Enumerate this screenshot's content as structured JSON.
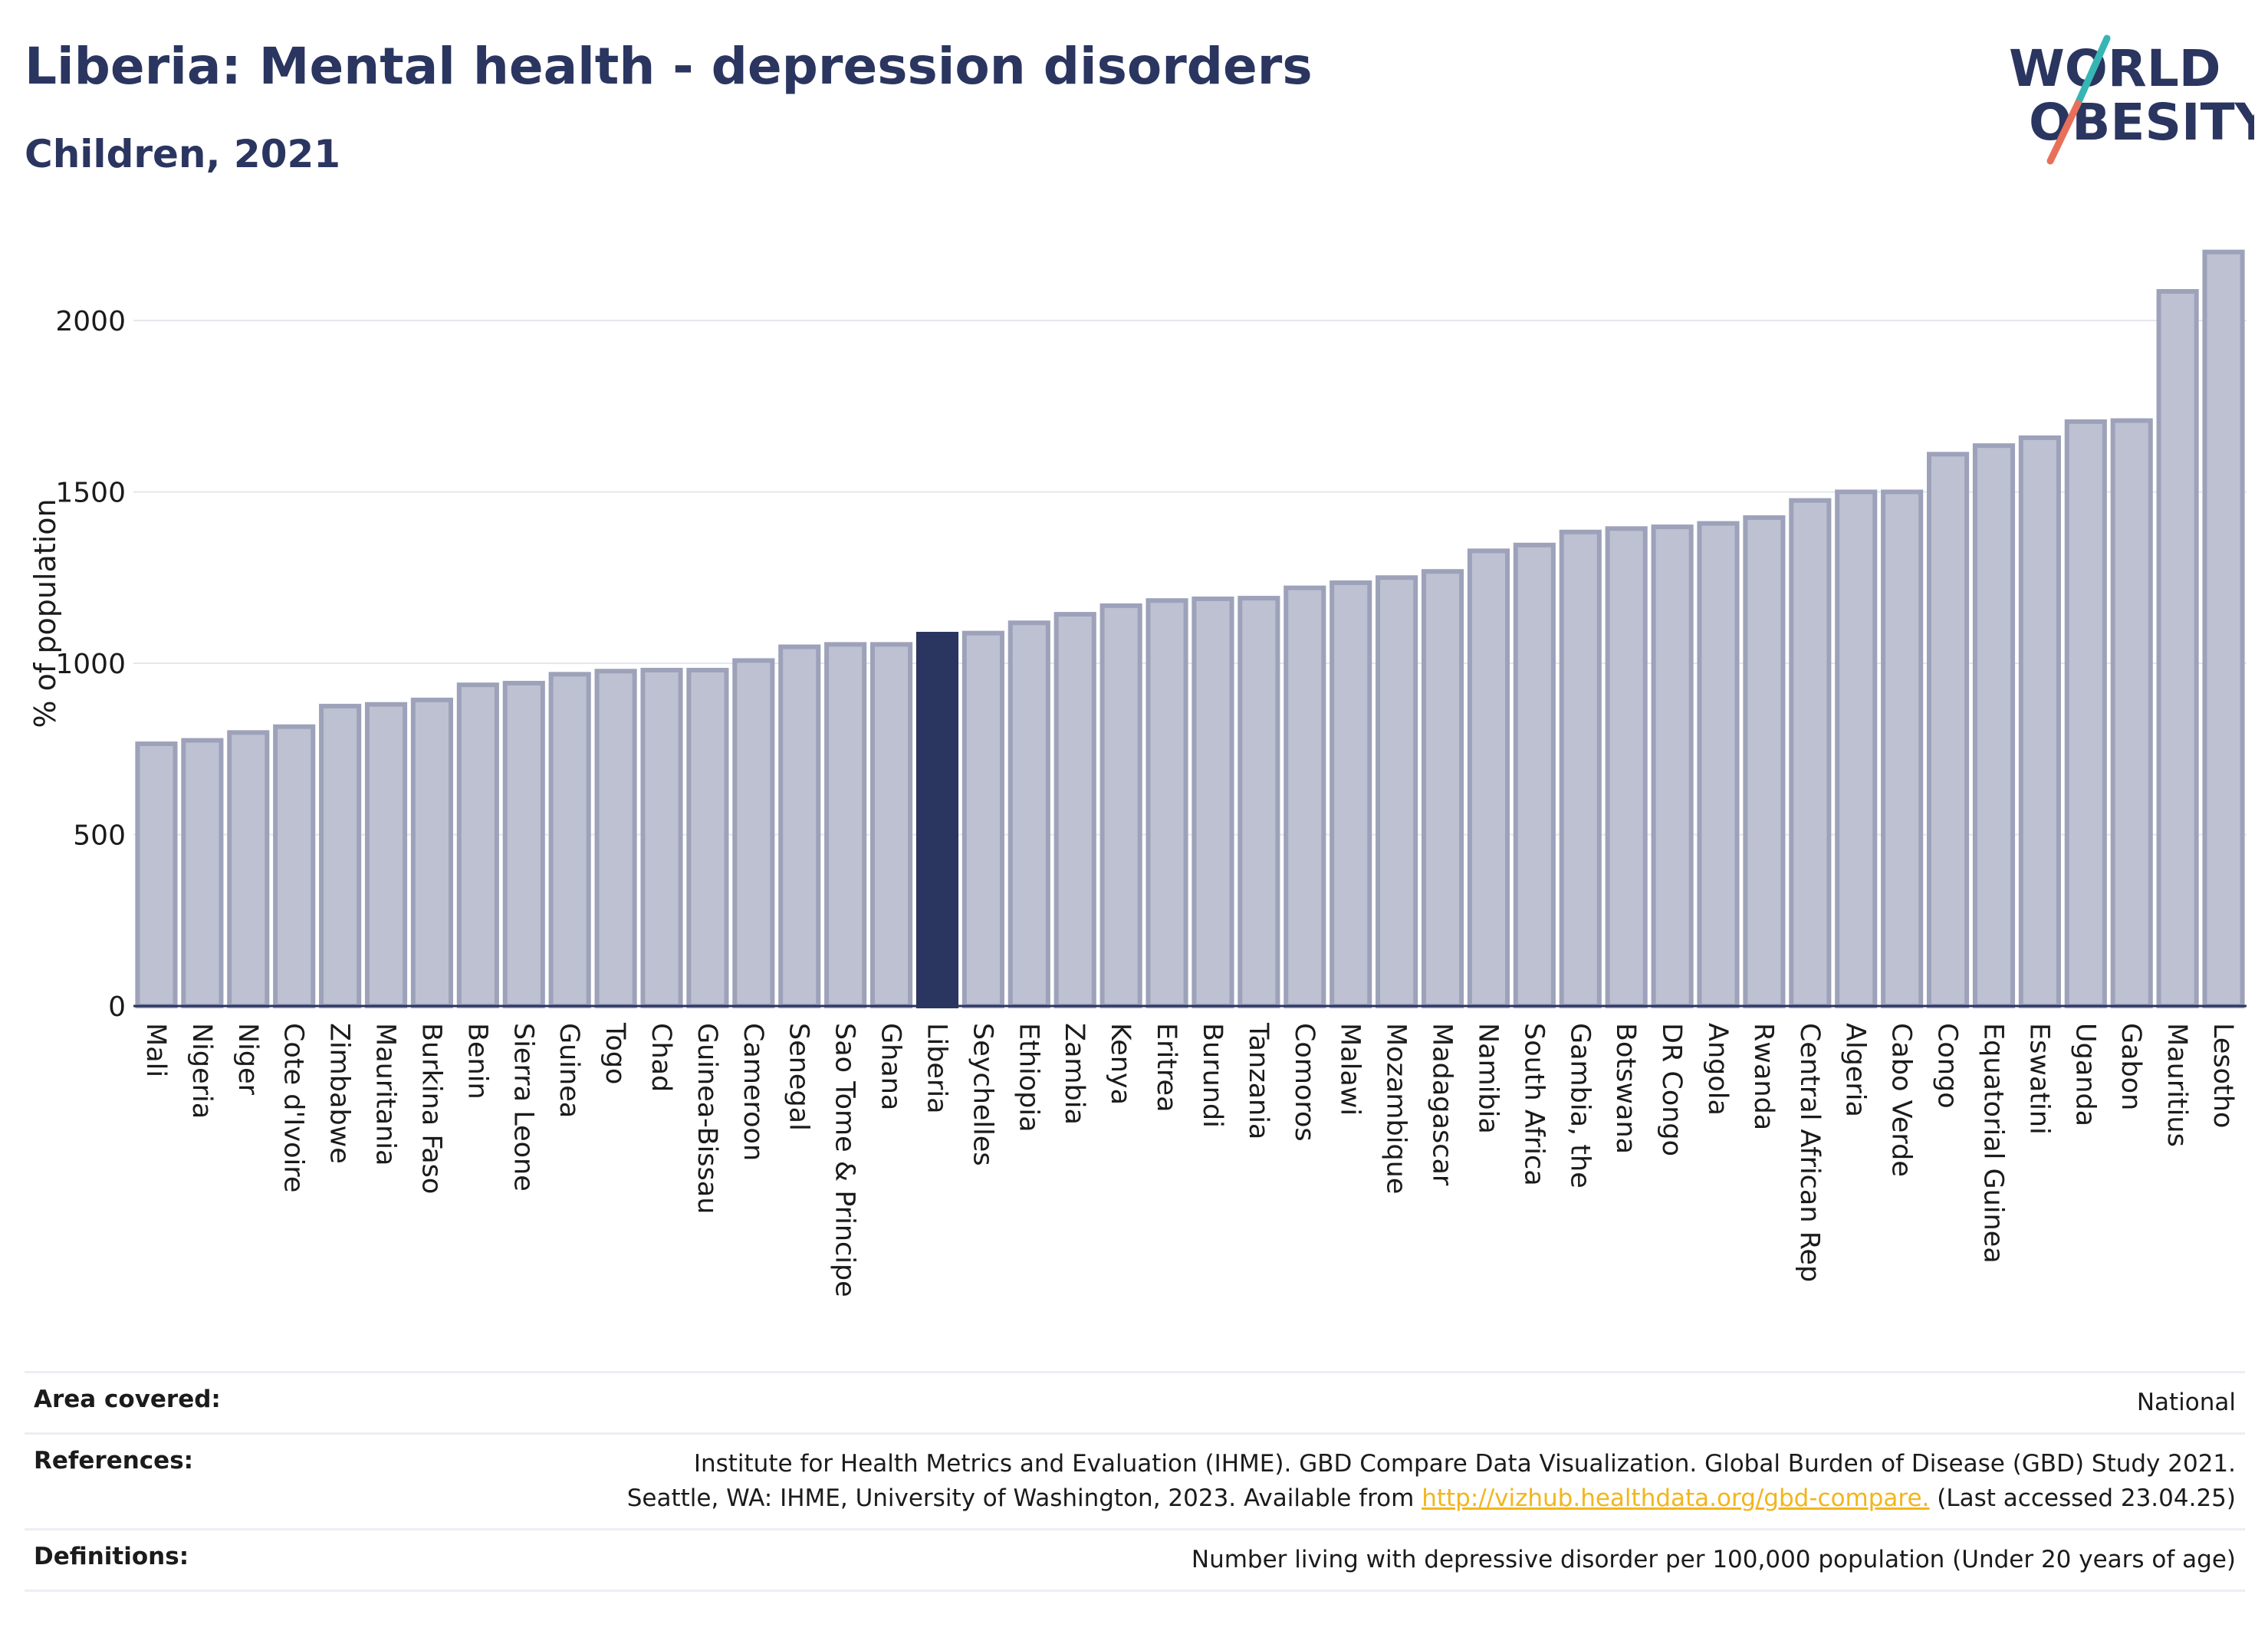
{
  "header": {
    "title": "Liberia: Mental health - depression disorders",
    "subtitle": "Children, 2021"
  },
  "logo": {
    "line1": "WORLD",
    "line2": "OBESITY",
    "accent_colors": [
      "#35b6b4",
      "#e8705a"
    ]
  },
  "colors": {
    "bar": "#bdc1d1",
    "bar_stroke": "#9da2ba",
    "highlight": "#2a3560",
    "grid": "#e6e7ed",
    "text": "#1b1b1b"
  },
  "chart_data": {
    "type": "bar",
    "title": "Liberia: Mental health - depression disorders",
    "subtitle": "Children, 2021",
    "ylabel": "% of population",
    "xlabel": "",
    "ylim": [
      0,
      2250
    ],
    "yticks": [
      0,
      500,
      1000,
      1500,
      2000
    ],
    "grid": true,
    "highlight": "Liberia",
    "categories": [
      "Mali",
      "Nigeria",
      "Niger",
      "Cote d'Ivoire",
      "Zimbabwe",
      "Mauritania",
      "Burkina Faso",
      "Benin",
      "Sierra Leone",
      "Guinea",
      "Togo",
      "Chad",
      "Guinea-Bissau",
      "Cameroon",
      "Senegal",
      "Sao Tome & Principe",
      "Ghana",
      "Liberia",
      "Seychelles",
      "Ethiopia",
      "Zambia",
      "Kenya",
      "Eritrea",
      "Burundi",
      "Tanzania",
      "Comoros",
      "Malawi",
      "Mozambique",
      "Madagascar",
      "Namibia",
      "South Africa",
      "Gambia, the",
      "Botswana",
      "DR Congo",
      "Angola",
      "Rwanda",
      "Central African Rep",
      "Algeria",
      "Cabo Verde",
      "Congo",
      "Equatorial Guinea",
      "Eswatini",
      "Uganda",
      "Gabon",
      "Mauritius",
      "Lesotho"
    ],
    "values": [
      765,
      775,
      798,
      815,
      875,
      880,
      893,
      937,
      942,
      968,
      977,
      980,
      980,
      1008,
      1048,
      1055,
      1055,
      1085,
      1088,
      1118,
      1143,
      1168,
      1183,
      1188,
      1190,
      1220,
      1235,
      1250,
      1268,
      1328,
      1345,
      1383,
      1393,
      1398,
      1408,
      1425,
      1475,
      1500,
      1500,
      1610,
      1635,
      1658,
      1705,
      1708,
      2085,
      2200
    ]
  },
  "footer": {
    "area_label": "Area covered:",
    "area_value": "National",
    "references_label": "References:",
    "references_line1": "Institute for Health Metrics and Evaluation (IHME). GBD Compare Data Visualization. Global Burden of Disease (GBD) Study 2021.",
    "references_line2_pre": "Seattle, WA: IHME, University of Washington, 2023. Available from ",
    "references_link": "http://vizhub.healthdata.org/gbd-compare.",
    "references_line2_post": " (Last accessed 23.04.25)",
    "definitions_label": "Definitions:",
    "definitions_value": "Number living with depressive disorder per 100,000 population (Under 20 years of age)"
  }
}
